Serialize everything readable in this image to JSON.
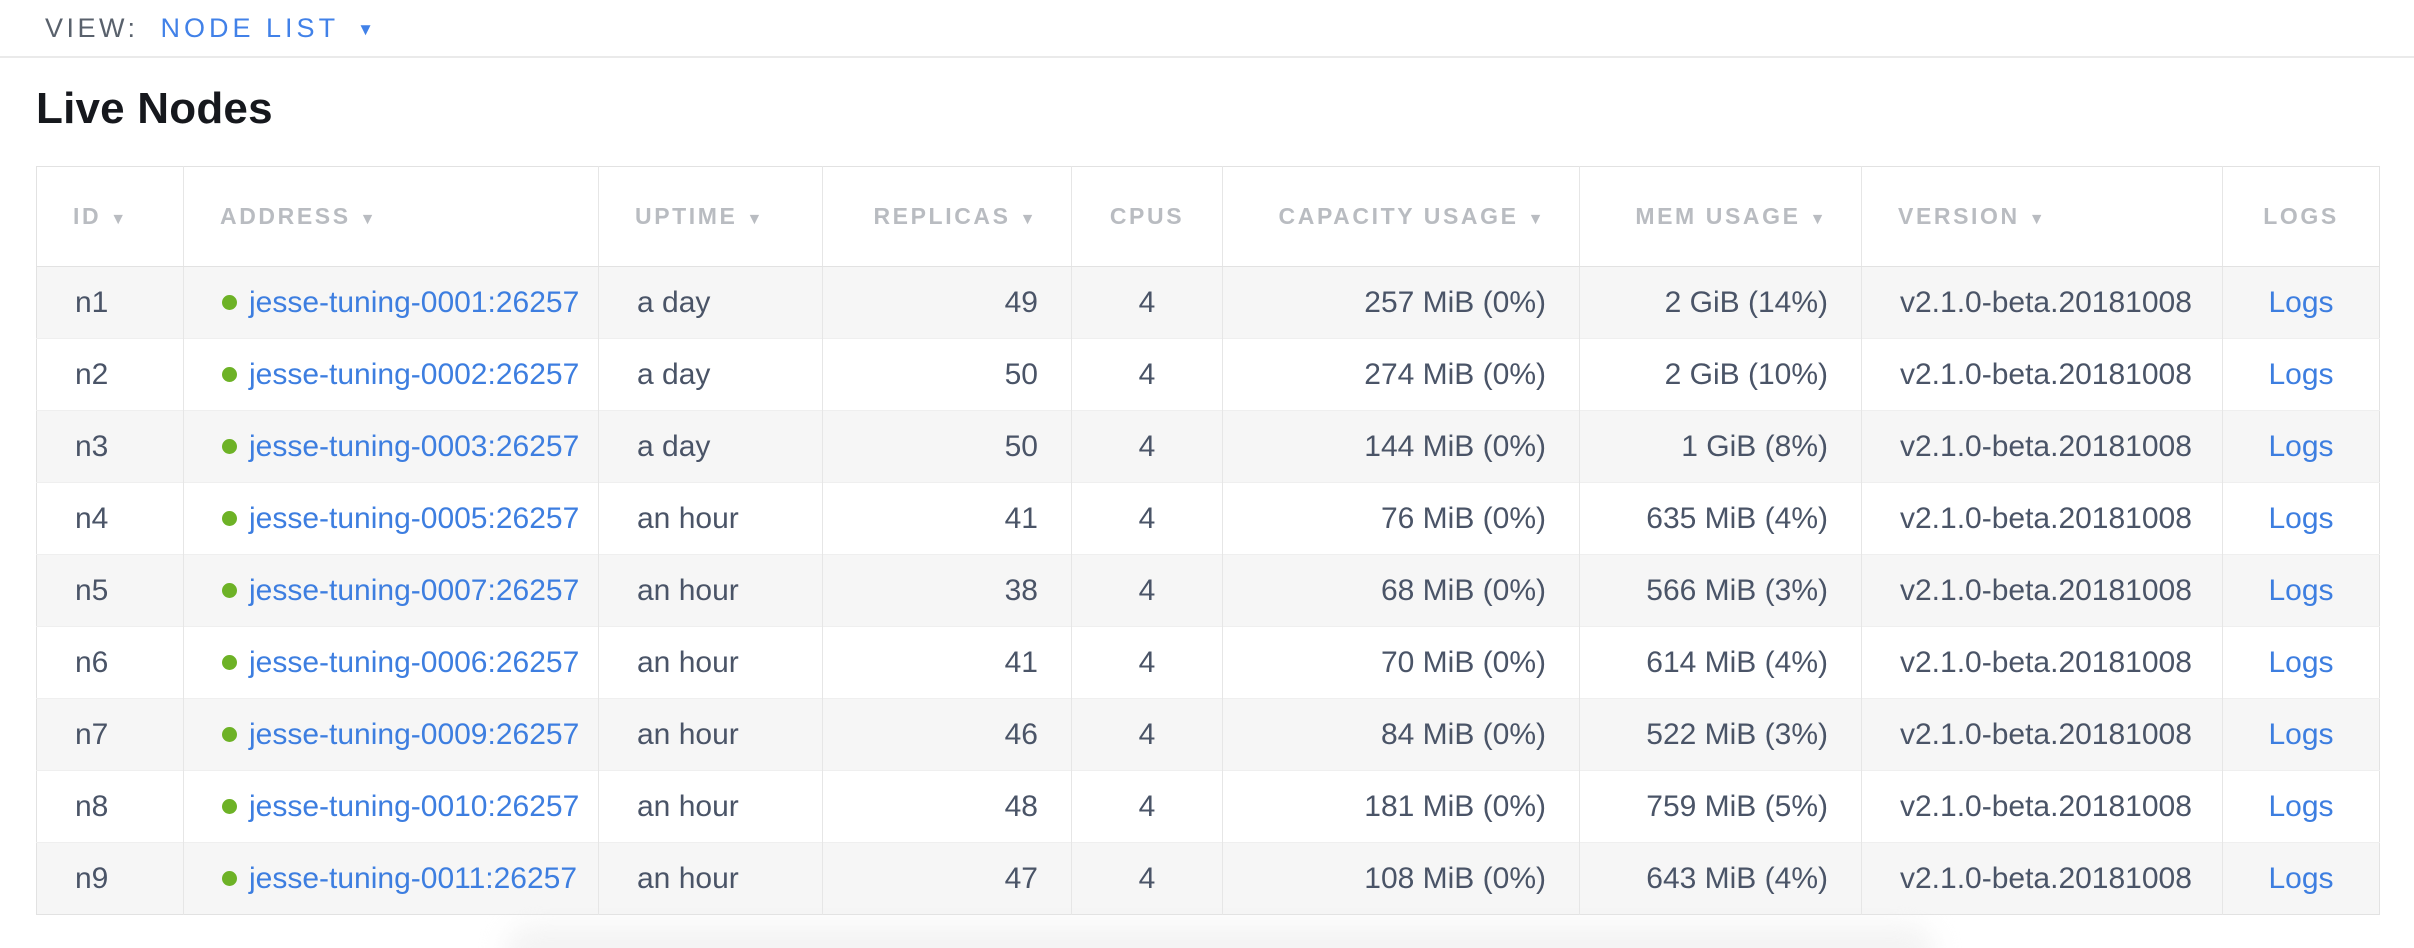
{
  "view_bar": {
    "label": "VIEW:",
    "selected": "NODE LIST"
  },
  "page": {
    "title": "Live Nodes"
  },
  "icons": {
    "sort_arrow": "▼",
    "dropdown_arrow": "▼"
  },
  "colors": {
    "link_blue": "#3d7ee0",
    "accent_blue": "#4181e8",
    "healthy_green": "#6db226",
    "header_gray": "#b9bcc1",
    "body_text": "#4a5467",
    "row_alt_bg": "#f6f6f6"
  },
  "table": {
    "columns": [
      {
        "key": "id",
        "label": "ID",
        "sortable": true,
        "align": "al"
      },
      {
        "key": "address",
        "label": "ADDRESS",
        "sortable": true,
        "align": "al"
      },
      {
        "key": "uptime",
        "label": "UPTIME",
        "sortable": true,
        "align": "al"
      },
      {
        "key": "replicas",
        "label": "REPLICAS",
        "sortable": true,
        "align": "ar"
      },
      {
        "key": "cpus",
        "label": "CPUS",
        "sortable": false,
        "align": "ac"
      },
      {
        "key": "capacity",
        "label": "CAPACITY USAGE",
        "sortable": true,
        "align": "ar"
      },
      {
        "key": "mem",
        "label": "MEM USAGE",
        "sortable": true,
        "align": "ar"
      },
      {
        "key": "version",
        "label": "VERSION",
        "sortable": true,
        "align": "al"
      },
      {
        "key": "logs",
        "label": "LOGS",
        "sortable": false,
        "align": "ac"
      }
    ],
    "rows": [
      {
        "id": "n1",
        "address": "jesse-tuning-0001:26257",
        "uptime": "a day",
        "replicas": "49",
        "cpus": "4",
        "capacity": "257 MiB (0%)",
        "mem": "2 GiB (14%)",
        "version": "v2.1.0-beta.20181008",
        "logs": "Logs"
      },
      {
        "id": "n2",
        "address": "jesse-tuning-0002:26257",
        "uptime": "a day",
        "replicas": "50",
        "cpus": "4",
        "capacity": "274 MiB (0%)",
        "mem": "2 GiB (10%)",
        "version": "v2.1.0-beta.20181008",
        "logs": "Logs"
      },
      {
        "id": "n3",
        "address": "jesse-tuning-0003:26257",
        "uptime": "a day",
        "replicas": "50",
        "cpus": "4",
        "capacity": "144 MiB (0%)",
        "mem": "1 GiB (8%)",
        "version": "v2.1.0-beta.20181008",
        "logs": "Logs"
      },
      {
        "id": "n4",
        "address": "jesse-tuning-0005:26257",
        "uptime": "an hour",
        "replicas": "41",
        "cpus": "4",
        "capacity": "76 MiB (0%)",
        "mem": "635 MiB (4%)",
        "version": "v2.1.0-beta.20181008",
        "logs": "Logs"
      },
      {
        "id": "n5",
        "address": "jesse-tuning-0007:26257",
        "uptime": "an hour",
        "replicas": "38",
        "cpus": "4",
        "capacity": "68 MiB (0%)",
        "mem": "566 MiB (3%)",
        "version": "v2.1.0-beta.20181008",
        "logs": "Logs"
      },
      {
        "id": "n6",
        "address": "jesse-tuning-0006:26257",
        "uptime": "an hour",
        "replicas": "41",
        "cpus": "4",
        "capacity": "70 MiB (0%)",
        "mem": "614 MiB (4%)",
        "version": "v2.1.0-beta.20181008",
        "logs": "Logs"
      },
      {
        "id": "n7",
        "address": "jesse-tuning-0009:26257",
        "uptime": "an hour",
        "replicas": "46",
        "cpus": "4",
        "capacity": "84 MiB (0%)",
        "mem": "522 MiB (3%)",
        "version": "v2.1.0-beta.20181008",
        "logs": "Logs"
      },
      {
        "id": "n8",
        "address": "jesse-tuning-0010:26257",
        "uptime": "an hour",
        "replicas": "48",
        "cpus": "4",
        "capacity": "181 MiB (0%)",
        "mem": "759 MiB (5%)",
        "version": "v2.1.0-beta.20181008",
        "logs": "Logs"
      },
      {
        "id": "n9",
        "address": "jesse-tuning-0011:26257",
        "uptime": "an hour",
        "replicas": "47",
        "cpus": "4",
        "capacity": "108 MiB (0%)",
        "mem": "643 MiB (4%)",
        "version": "v2.1.0-beta.20181008",
        "logs": "Logs"
      }
    ]
  }
}
